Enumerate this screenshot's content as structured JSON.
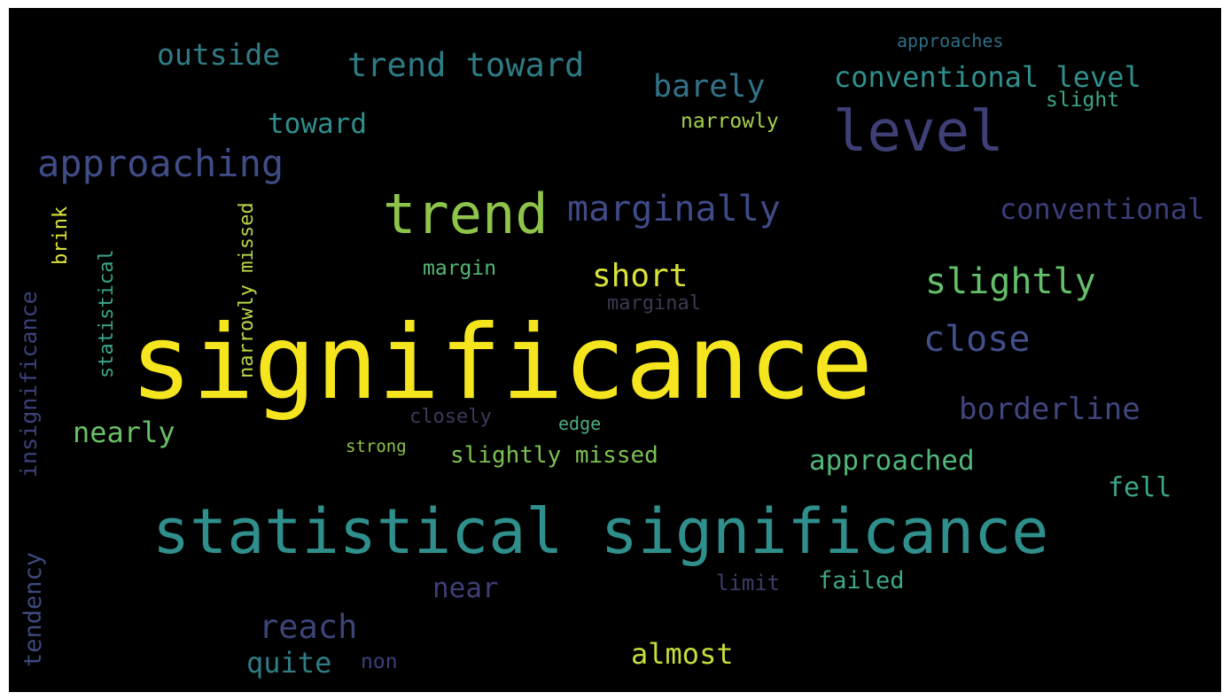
{
  "background": "#000000",
  "frame_color": "#ffffff",
  "colormap": "viridis",
  "words": [
    {
      "id": "significance",
      "text": "significance",
      "color": "#f4e51e",
      "vertical": false
    },
    {
      "id": "statistical-significance",
      "text": "statistical significance",
      "color": "#2f8f8c",
      "vertical": false
    },
    {
      "id": "trend",
      "text": "trend",
      "color": "#8ec44a",
      "vertical": false
    },
    {
      "id": "level",
      "text": "level",
      "color": "#3d3f75",
      "vertical": false
    },
    {
      "id": "marginally",
      "text": "marginally",
      "color": "#3f4b88",
      "vertical": false
    },
    {
      "id": "approaching",
      "text": "approaching",
      "color": "#3f4c86",
      "vertical": false
    },
    {
      "id": "trend-toward",
      "text": "trend toward",
      "color": "#2f7b85",
      "vertical": false
    },
    {
      "id": "outside",
      "text": "outside",
      "color": "#2f7c85",
      "vertical": false
    },
    {
      "id": "approaches",
      "text": "approaches",
      "color": "#2d6e86",
      "vertical": false
    },
    {
      "id": "barely",
      "text": "barely",
      "color": "#33738a",
      "vertical": false
    },
    {
      "id": "conventional-level",
      "text": "conventional level",
      "color": "#2f8f8c",
      "vertical": false
    },
    {
      "id": "slight",
      "text": "slight",
      "color": "#3ba68a",
      "vertical": false
    },
    {
      "id": "narrowly",
      "text": "narrowly",
      "color": "#a4d04d",
      "vertical": false
    },
    {
      "id": "toward",
      "text": "toward",
      "color": "#2f8f8c",
      "vertical": false
    },
    {
      "id": "conventional",
      "text": "conventional",
      "color": "#3b3f79",
      "vertical": false
    },
    {
      "id": "short",
      "text": "short",
      "color": "#d8e23b",
      "vertical": false
    },
    {
      "id": "slightly",
      "text": "slightly",
      "color": "#62bf6a",
      "vertical": false
    },
    {
      "id": "margin",
      "text": "margin",
      "color": "#55b774",
      "vertical": false
    },
    {
      "id": "marginal",
      "text": "marginal",
      "color": "#3a3a52",
      "vertical": false
    },
    {
      "id": "close",
      "text": "close",
      "color": "#41508c",
      "vertical": false
    },
    {
      "id": "borderline",
      "text": "borderline",
      "color": "#40467e",
      "vertical": false
    },
    {
      "id": "closely",
      "text": "closely",
      "color": "#3b3a5a",
      "vertical": false
    },
    {
      "id": "edge",
      "text": "edge",
      "color": "#4cad80",
      "vertical": false
    },
    {
      "id": "strong",
      "text": "strong",
      "color": "#8ec44a",
      "vertical": false
    },
    {
      "id": "slightly-missed",
      "text": "slightly missed",
      "color": "#7cc152",
      "vertical": false
    },
    {
      "id": "nearly",
      "text": "nearly",
      "color": "#68bf66",
      "vertical": false
    },
    {
      "id": "approached",
      "text": "approached",
      "color": "#50b67a",
      "vertical": false
    },
    {
      "id": "fell",
      "text": "fell",
      "color": "#3ba68a",
      "vertical": false
    },
    {
      "id": "near",
      "text": "near",
      "color": "#3d3f75",
      "vertical": false
    },
    {
      "id": "limit",
      "text": "limit",
      "color": "#3b3c69",
      "vertical": false
    },
    {
      "id": "failed",
      "text": "failed",
      "color": "#3ea68a",
      "vertical": false
    },
    {
      "id": "reach",
      "text": "reach",
      "color": "#3b4577",
      "vertical": false
    },
    {
      "id": "almost",
      "text": "almost",
      "color": "#c8dc3a",
      "vertical": false
    },
    {
      "id": "quite",
      "text": "quite",
      "color": "#2f7c85",
      "vertical": false
    },
    {
      "id": "non",
      "text": "non",
      "color": "#3b3f78",
      "vertical": false
    },
    {
      "id": "insignificance",
      "text": "insignificance",
      "color": "#3a4279",
      "vertical": true
    },
    {
      "id": "statistical",
      "text": "statistical",
      "color": "#3ba68a",
      "vertical": true
    },
    {
      "id": "brink",
      "text": "brink",
      "color": "#dde43a",
      "vertical": true
    },
    {
      "id": "narrowly-missed",
      "text": "narrowly missed",
      "color": "#b6d54a",
      "vertical": true
    },
    {
      "id": "tendency",
      "text": "tendency",
      "color": "#3c4a7c",
      "vertical": true
    }
  ]
}
